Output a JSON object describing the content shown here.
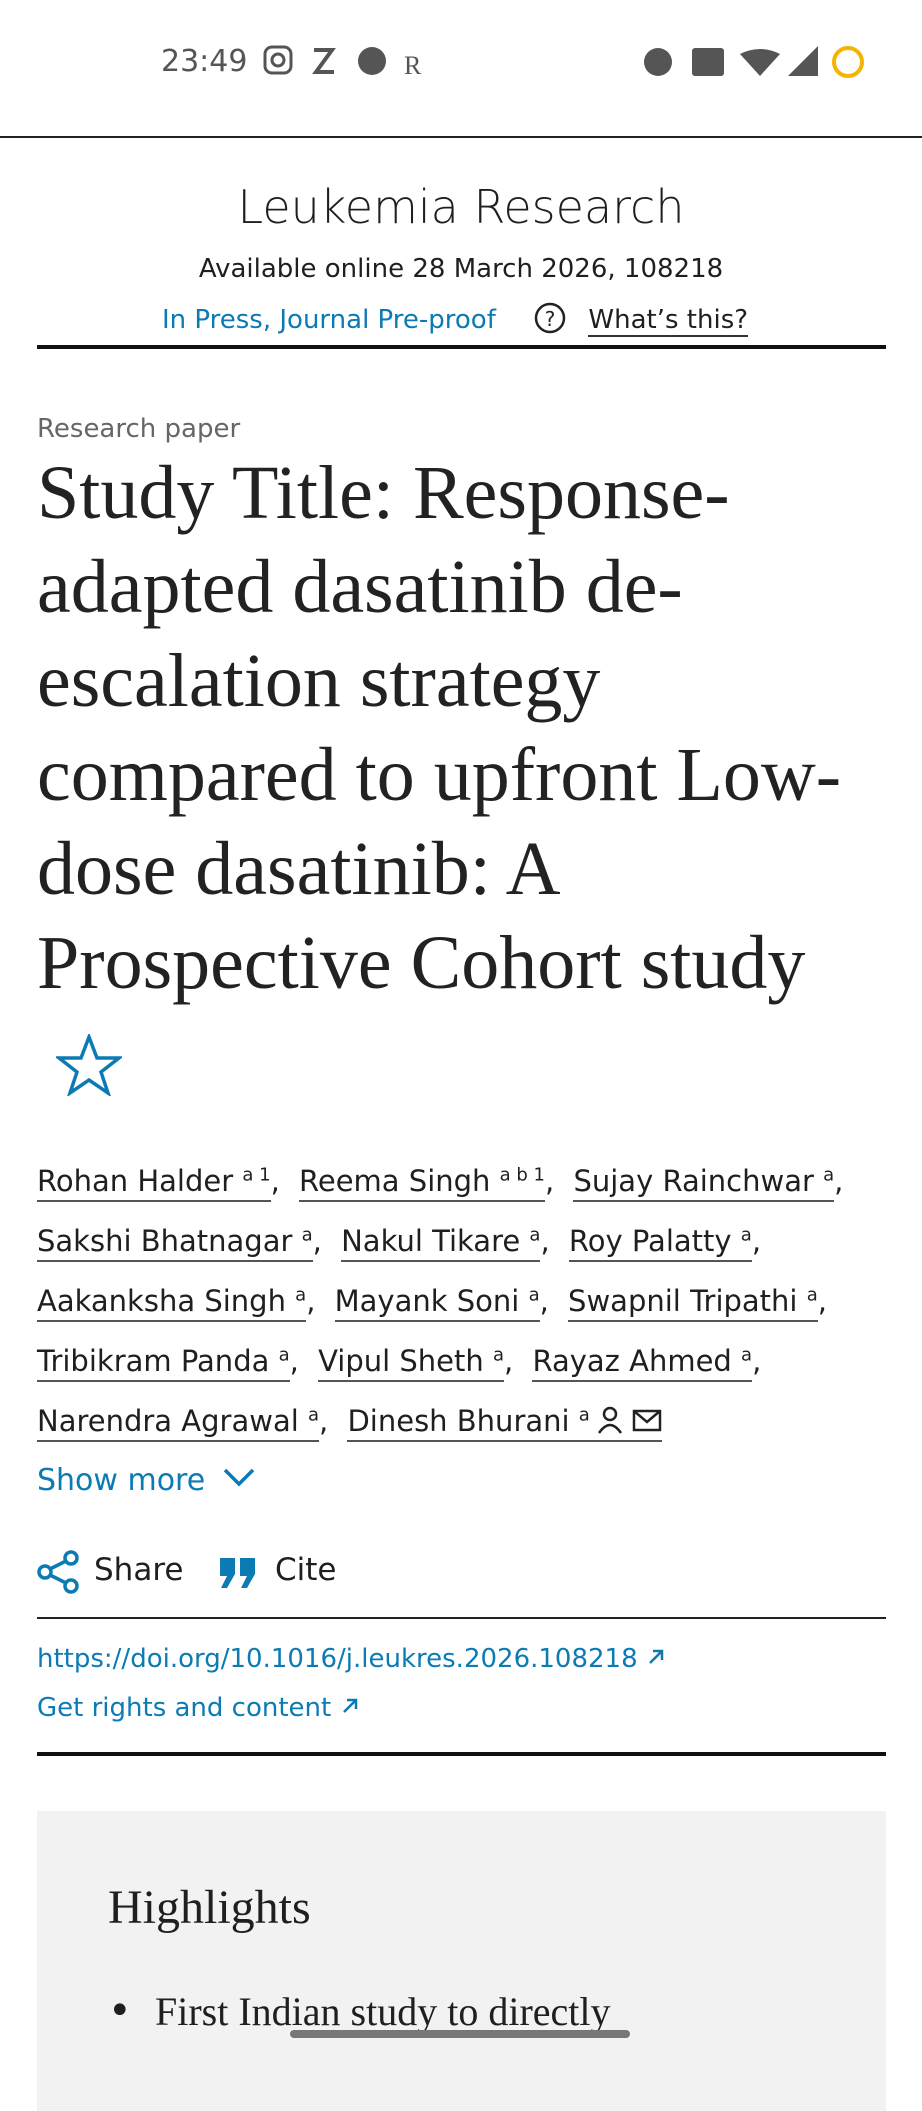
{
  "status_bar": {
    "time": "23:49"
  },
  "header": {
    "journal": "Leukemia Research",
    "available": "Available online 28 March 2026, 108218",
    "status": "In Press, Journal Pre-proof",
    "whats_this": "What’s this?"
  },
  "article": {
    "type": "Research paper",
    "title": "Study Title: Response-adapted dasatinib de-escalation strategy compared to upfront Low-dose dasatinib: A Prospective Cohort study",
    "authors": [
      {
        "name": "Rohan Halder",
        "sup": "a 1"
      },
      {
        "name": "Reema Singh",
        "sup": "a b 1"
      },
      {
        "name": "Sujay Rainchwar",
        "sup": "a"
      },
      {
        "name": "Sakshi Bhatnagar",
        "sup": "a"
      },
      {
        "name": "Nakul Tikare",
        "sup": "a"
      },
      {
        "name": "Roy Palatty",
        "sup": "a"
      },
      {
        "name": "Aakanksha Singh",
        "sup": "a"
      },
      {
        "name": "Mayank Soni",
        "sup": "a"
      },
      {
        "name": "Swapnil Tripathi",
        "sup": "a"
      },
      {
        "name": "Tribikram Panda",
        "sup": "a"
      },
      {
        "name": "Vipul Sheth",
        "sup": "a"
      },
      {
        "name": "Rayaz Ahmed",
        "sup": "a"
      },
      {
        "name": "Narendra Agrawal",
        "sup": "a"
      },
      {
        "name": "Dinesh Bhurani",
        "sup": "a"
      }
    ],
    "show_more": "Show more",
    "share": "Share",
    "cite": "Cite",
    "doi": "https://doi.org/10.1016/j.leukres.2026.108218",
    "rights": "Get rights and content"
  },
  "highlights": {
    "heading": "Highlights",
    "items": [
      "First Indian study to directly"
    ]
  }
}
